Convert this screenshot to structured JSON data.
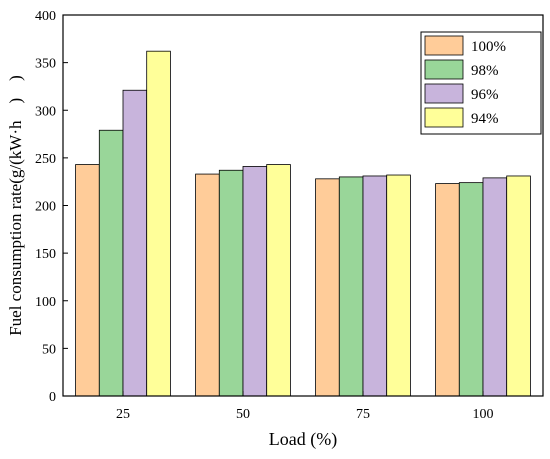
{
  "chart_data": {
    "type": "bar",
    "xlabel": "Load (%)",
    "ylabel": "Fuel consumption rate(g/(kW·h　)　)",
    "categories": [
      "25",
      "50",
      "75",
      "100"
    ],
    "ylim": [
      0,
      400
    ],
    "yticks": [
      "0",
      "50",
      "100",
      "150",
      "200",
      "250",
      "300",
      "350",
      "400"
    ],
    "legend_position": "top-right",
    "grid": false,
    "series": [
      {
        "name": "100%",
        "color": "#FFCC99",
        "values": [
          243,
          233,
          228,
          223
        ]
      },
      {
        "name": "98%",
        "color": "#99D699",
        "values": [
          279,
          237,
          230,
          224
        ]
      },
      {
        "name": "96%",
        "color": "#C8B4DC",
        "values": [
          321,
          241,
          231,
          229
        ]
      },
      {
        "name": "94%",
        "color": "#FFFF99",
        "values": [
          362,
          243,
          232,
          231
        ]
      }
    ]
  }
}
